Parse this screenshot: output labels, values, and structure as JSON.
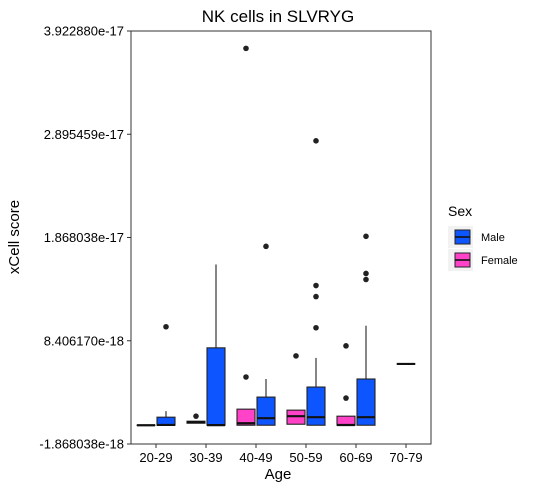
{
  "chart_data": {
    "type": "boxplot",
    "title": "NK cells in SLVRYG",
    "xlabel": "Age",
    "ylabel": "xCell score",
    "ylim": [
      -1.868038e-18,
      3.92288e-17
    ],
    "yticks": [
      -1.868038e-18,
      8.40617e-18,
      1.868038e-17,
      2.895459e-17,
      3.92288e-17
    ],
    "ytick_labels": [
      "-1.868038e-18",
      "8.406170e-18",
      "1.868038e-17",
      "2.895459e-17",
      "3.922880e-17"
    ],
    "categories": [
      "20-29",
      "30-39",
      "40-49",
      "50-59",
      "60-69",
      "70-79"
    ],
    "legend": {
      "title": "Sex",
      "placement": "right",
      "entries": [
        {
          "name": "Male",
          "color": "#0d55ff"
        },
        {
          "name": "Female",
          "color": "#ff42c8"
        }
      ]
    },
    "boxes": [
      {
        "category": "20-29",
        "series": "Female",
        "color": "#ff42c8",
        "q1": 0,
        "median": 0,
        "q3": 0,
        "whisker_low": 0,
        "whisker_high": 0,
        "outliers": []
      },
      {
        "category": "20-29",
        "series": "Male",
        "color": "#0d55ff",
        "q1": 0,
        "median": 3e-20,
        "q3": 8e-19,
        "whisker_low": 0,
        "whisker_high": 1.4e-18,
        "outliers": [
          9.8e-18
        ]
      },
      {
        "category": "30-39",
        "series": "Female",
        "color": "#ff42c8",
        "q1": 2e-19,
        "median": 3e-19,
        "q3": 4e-19,
        "whisker_low": 2e-19,
        "whisker_high": 4e-19,
        "outliers": [
          9e-19
        ]
      },
      {
        "category": "30-39",
        "series": "Male",
        "color": "#0d55ff",
        "q1": 0,
        "median": 1e-20,
        "q3": 7.7e-18,
        "whisker_low": 0,
        "whisker_high": 1.6e-17,
        "outliers": []
      },
      {
        "category": "40-49",
        "series": "Female",
        "color": "#ff42c8",
        "q1": 0,
        "median": 2e-19,
        "q3": 1.6e-18,
        "whisker_low": 0,
        "whisker_high": 1.6e-18,
        "outliers": [
          4.8e-18,
          3.75e-17
        ]
      },
      {
        "category": "40-49",
        "series": "Male",
        "color": "#0d55ff",
        "q1": 0,
        "median": 7e-19,
        "q3": 2.8e-18,
        "whisker_low": 0,
        "whisker_high": 4.6e-18,
        "outliers": [
          1.78e-17
        ]
      },
      {
        "category": "50-59",
        "series": "Female",
        "color": "#ff42c8",
        "q1": 1e-19,
        "median": 9e-19,
        "q3": 1.5e-18,
        "whisker_low": 1e-19,
        "whisker_high": 1.5e-18,
        "outliers": [
          6.9e-18
        ]
      },
      {
        "category": "50-59",
        "series": "Male",
        "color": "#0d55ff",
        "q1": 0,
        "median": 8e-19,
        "q3": 3.8e-18,
        "whisker_low": 0,
        "whisker_high": 6.7e-18,
        "outliers": [
          9.7e-18,
          1.28e-17,
          1.39e-17,
          2.83e-17
        ]
      },
      {
        "category": "60-69",
        "series": "Female",
        "color": "#ff42c8",
        "q1": 0,
        "median": 2e-20,
        "q3": 9e-19,
        "whisker_low": 0,
        "whisker_high": 9e-19,
        "outliers": [
          2.7e-18,
          7.9e-18
        ]
      },
      {
        "category": "60-69",
        "series": "Male",
        "color": "#0d55ff",
        "q1": 0,
        "median": 8e-19,
        "q3": 4.6e-18,
        "whisker_low": 0,
        "whisker_high": 9.9e-18,
        "outliers": [
          1.45e-17,
          1.51e-17,
          1.88e-17
        ]
      },
      {
        "category": "70-79",
        "series": "Male",
        "color": "#0d55ff",
        "q1": 6.1e-18,
        "median": 6.1e-18,
        "q3": 6.1e-18,
        "whisker_low": 6.1e-18,
        "whisker_high": 6.1e-18,
        "outliers": []
      }
    ]
  }
}
